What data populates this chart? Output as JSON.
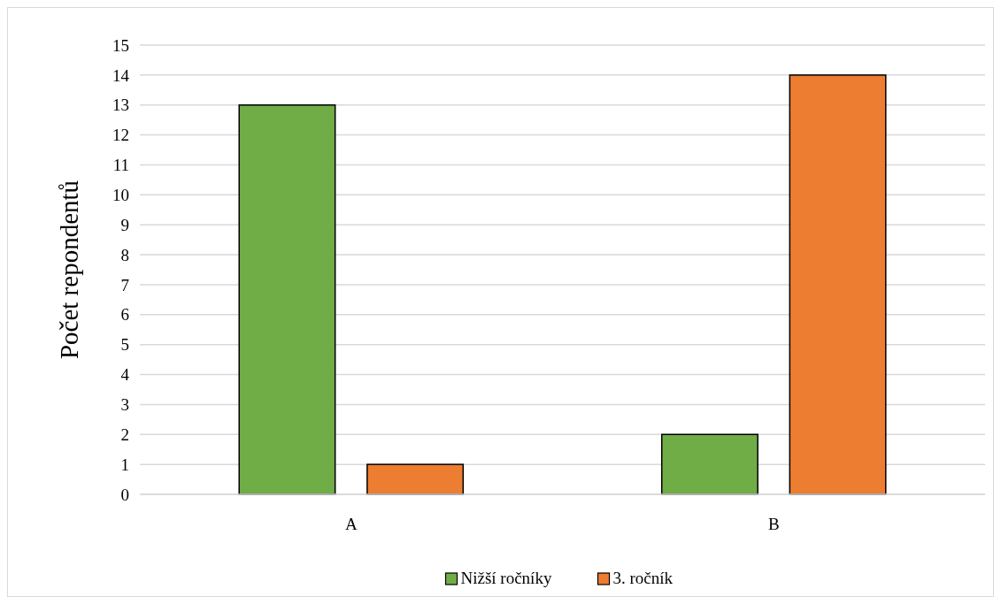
{
  "chart_data": {
    "type": "bar",
    "ylabel": "Počet repondentů",
    "categories": [
      "A",
      "B"
    ],
    "series": [
      {
        "name": "Nižší ročníky",
        "color": "#70ad47",
        "values": [
          13,
          2
        ]
      },
      {
        "name": "3. ročník",
        "color": "#ed7d31",
        "values": [
          1,
          14
        ]
      }
    ],
    "ylim": [
      0,
      15
    ],
    "yticks": [
      0,
      1,
      2,
      3,
      4,
      5,
      6,
      7,
      8,
      9,
      10,
      11,
      12,
      13,
      14,
      15
    ],
    "grid": "y",
    "legend": "bottom"
  }
}
